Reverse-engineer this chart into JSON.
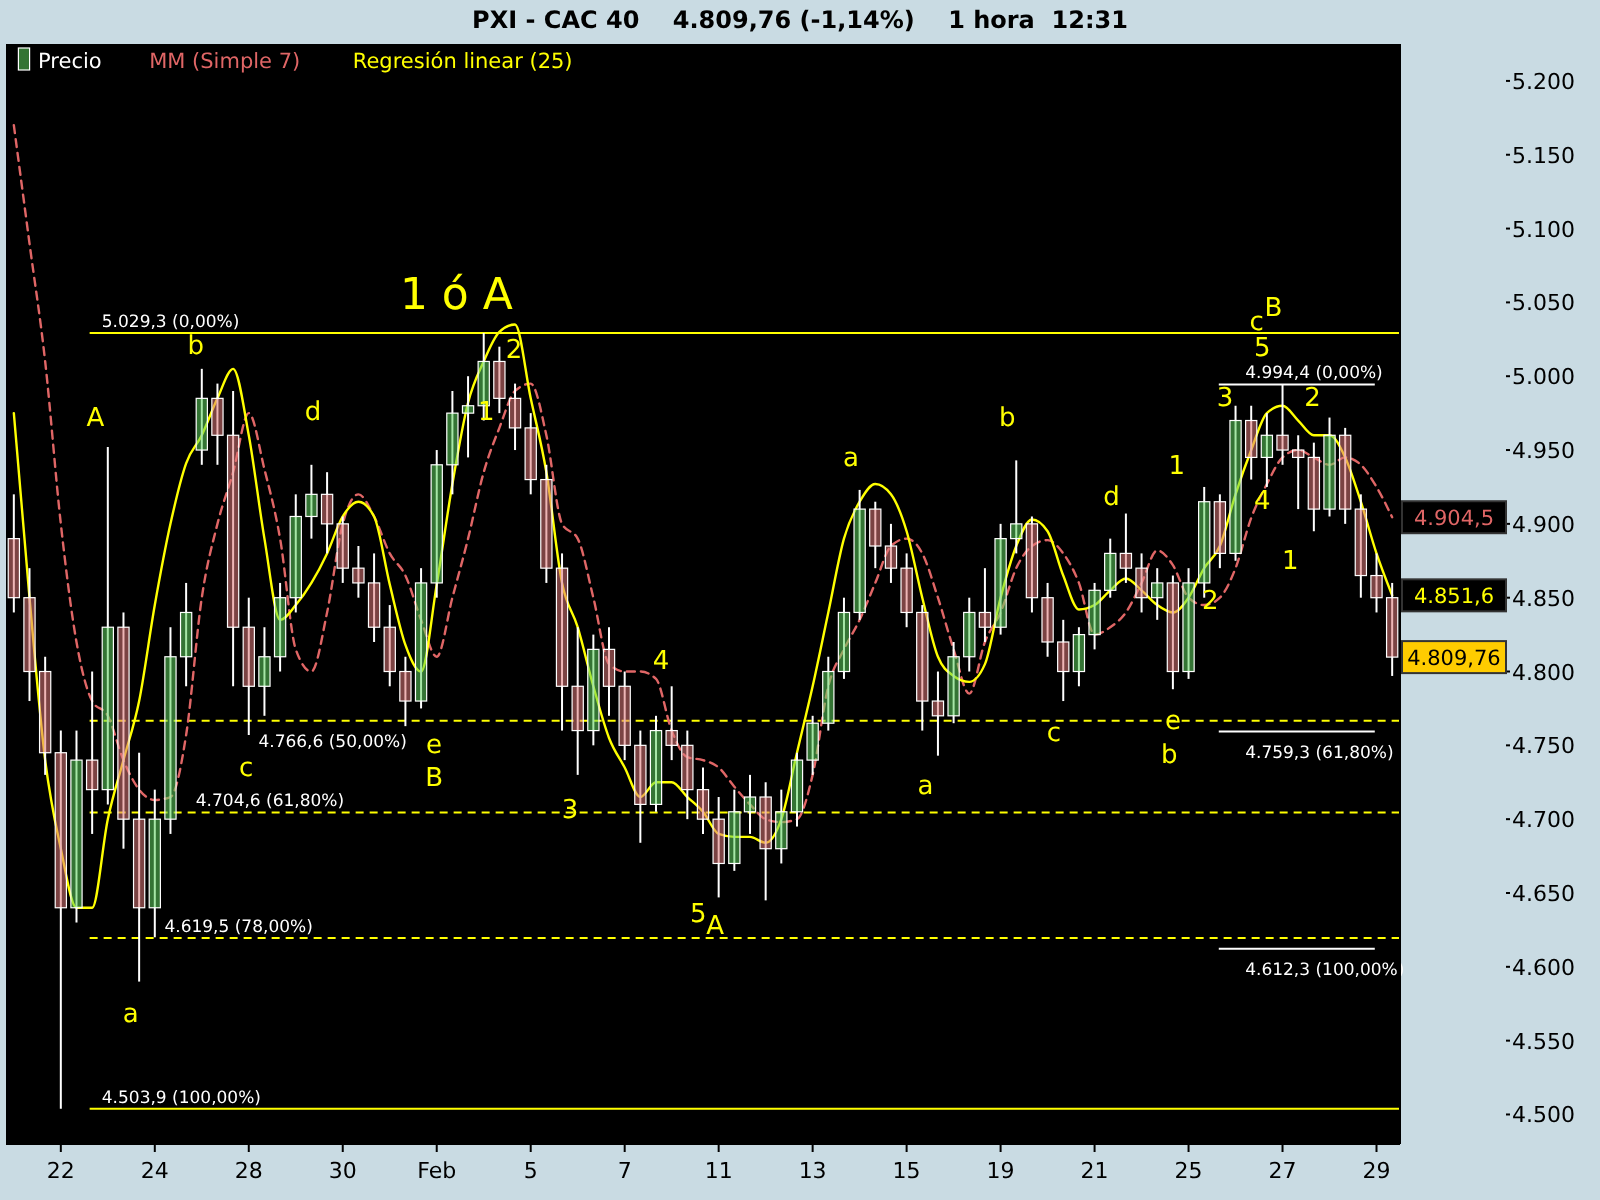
{
  "chart_data": {
    "type": "candlestick",
    "title": "PXI - CAC 40    4.809,76 (-1,14%)    1 hora  12:31",
    "categories": [
      null,
      null,
      null,
      "22",
      null,
      null,
      null,
      null,
      null,
      "24",
      null,
      null,
      null,
      null,
      null,
      "28",
      null,
      null,
      null,
      null,
      null,
      "30",
      null,
      null,
      null,
      null,
      null,
      "Feb",
      null,
      null,
      null,
      null,
      null,
      "5",
      null,
      null,
      null,
      null,
      null,
      "7",
      null,
      null,
      null,
      null,
      null,
      "11",
      null,
      null,
      null,
      null,
      null,
      "13",
      null,
      null,
      null,
      null,
      null,
      "15",
      null,
      null,
      null,
      null,
      null,
      "19",
      null,
      null,
      null,
      null,
      null,
      "21",
      null,
      null,
      null,
      null,
      null,
      "25",
      null,
      null,
      null,
      null,
      null,
      "27",
      null,
      null,
      null,
      null,
      null,
      "29",
      null
    ],
    "series": [
      {
        "name": "Precio",
        "color": "#ffffff",
        "ohlc": [
          [
            4890,
            4920,
            4840,
            4850
          ],
          [
            4850,
            4870,
            4780,
            4800
          ],
          [
            4800,
            4810,
            4730,
            4745
          ],
          [
            4745,
            4760,
            4503.9,
            4640
          ],
          [
            4640,
            4760,
            4630,
            4740
          ],
          [
            4740,
            4800,
            4690,
            4720
          ],
          [
            4720,
            4952,
            4710,
            4830
          ],
          [
            4830,
            4840,
            4680,
            4700
          ],
          [
            4700,
            4745,
            4590,
            4640
          ],
          [
            4640,
            4720,
            4620,
            4700
          ],
          [
            4700,
            4830,
            4690,
            4810
          ],
          [
            4810,
            4860,
            4790,
            4840
          ],
          [
            4950,
            5005,
            4940,
            4985
          ],
          [
            4985,
            4995,
            4940,
            4960
          ],
          [
            4960,
            4990,
            4790,
            4830
          ],
          [
            4830,
            4850,
            4757,
            4790
          ],
          [
            4790,
            4830,
            4770,
            4810
          ],
          [
            4810,
            4860,
            4800,
            4850
          ],
          [
            4850,
            4920,
            4840,
            4905
          ],
          [
            4905,
            4940,
            4890,
            4920
          ],
          [
            4920,
            4935,
            4880,
            4900
          ],
          [
            4900,
            4905,
            4860,
            4870
          ],
          [
            4870,
            4885,
            4850,
            4860
          ],
          [
            4860,
            4880,
            4820,
            4830
          ],
          [
            4830,
            4845,
            4790,
            4800
          ],
          [
            4800,
            4810,
            4763,
            4780
          ],
          [
            4780,
            4870,
            4775,
            4860
          ],
          [
            4860,
            4950,
            4850,
            4940
          ],
          [
            4940,
            4990,
            4920,
            4975
          ],
          [
            4975,
            5000,
            4945,
            4980
          ],
          [
            4980,
            5029.3,
            4970,
            5010
          ],
          [
            5010,
            5020,
            4975,
            4985
          ],
          [
            4985,
            4995,
            4950,
            4965
          ],
          [
            4965,
            4975,
            4920,
            4930
          ],
          [
            4930,
            4940,
            4860,
            4870
          ],
          [
            4870,
            4880,
            4760,
            4790
          ],
          [
            4790,
            4830,
            4730,
            4760
          ],
          [
            4760,
            4825,
            4750,
            4815
          ],
          [
            4815,
            4830,
            4770,
            4790
          ],
          [
            4790,
            4800,
            4740,
            4750
          ],
          [
            4750,
            4760,
            4684,
            4710
          ],
          [
            4710,
            4770,
            4705,
            4760
          ],
          [
            4760,
            4790,
            4740,
            4750
          ],
          [
            4750,
            4760,
            4700,
            4720
          ],
          [
            4720,
            4735,
            4690,
            4700
          ],
          [
            4700,
            4715,
            4647,
            4670
          ],
          [
            4670,
            4720,
            4665,
            4705
          ],
          [
            4705,
            4730,
            4690,
            4715
          ],
          [
            4715,
            4725,
            4645,
            4680
          ],
          [
            4680,
            4720,
            4670,
            4705
          ],
          [
            4705,
            4745,
            4695,
            4740
          ],
          [
            4740,
            4770,
            4730,
            4765
          ],
          [
            4765,
            4810,
            4760,
            4800
          ],
          [
            4800,
            4850,
            4795,
            4840
          ],
          [
            4840,
            4923,
            4835,
            4910
          ],
          [
            4910,
            4915,
            4870,
            4885
          ],
          [
            4885,
            4900,
            4860,
            4870
          ],
          [
            4870,
            4880,
            4830,
            4840
          ],
          [
            4840,
            4845,
            4760,
            4780
          ],
          [
            4780,
            4800,
            4743,
            4770
          ],
          [
            4770,
            4820,
            4765,
            4810
          ],
          [
            4810,
            4850,
            4800,
            4840
          ],
          [
            4840,
            4870,
            4820,
            4830
          ],
          [
            4830,
            4900,
            4825,
            4890
          ],
          [
            4890,
            4943,
            4880,
            4900
          ],
          [
            4900,
            4905,
            4840,
            4850
          ],
          [
            4850,
            4860,
            4810,
            4820
          ],
          [
            4820,
            4835,
            4780,
            4800
          ],
          [
            4800,
            4830,
            4790,
            4825
          ],
          [
            4825,
            4860,
            4815,
            4855
          ],
          [
            4855,
            4890,
            4850,
            4880
          ],
          [
            4880,
            4907,
            4860,
            4870
          ],
          [
            4870,
            4880,
            4840,
            4850
          ],
          [
            4850,
            4870,
            4835,
            4860
          ],
          [
            4860,
            4865,
            4788,
            4800
          ],
          [
            4800,
            4870,
            4795,
            4860
          ],
          [
            4860,
            4925,
            4850,
            4915
          ],
          [
            4915,
            4920,
            4870,
            4880
          ],
          [
            4880,
            4980,
            4875,
            4970
          ],
          [
            4970,
            4980,
            4930,
            4945
          ],
          [
            4945,
            4975,
            4925,
            4960
          ],
          [
            4960,
            4994.4,
            4940,
            4950
          ],
          [
            4950,
            4960,
            4910,
            4945
          ],
          [
            4945,
            4955,
            4895,
            4910
          ],
          [
            4910,
            4972,
            4905,
            4960
          ],
          [
            4960,
            4965,
            4900,
            4910
          ],
          [
            4910,
            4920,
            4850,
            4865
          ],
          [
            4865,
            4880,
            4840,
            4850
          ],
          [
            4850,
            4860,
            4797,
            4809.76
          ]
        ],
        "value_labels": [
          null,
          null,
          null,
          null,
          null,
          null,
          null,
          null,
          null,
          null,
          null,
          null,
          null,
          null,
          null,
          null,
          null,
          null,
          null,
          null,
          null,
          null,
          null,
          null,
          null,
          null,
          null,
          null,
          null,
          null,
          null,
          null,
          null,
          null,
          null,
          null,
          null,
          null,
          null,
          null,
          null,
          null,
          null,
          null,
          null,
          null,
          null,
          null,
          null,
          null,
          null,
          null,
          null,
          null,
          null,
          null,
          null,
          null,
          null,
          null,
          null,
          null,
          null,
          null,
          null,
          null,
          null,
          null,
          null,
          null,
          null,
          null,
          null,
          null,
          null,
          null,
          null,
          null,
          null,
          null,
          null,
          null,
          null,
          null,
          null,
          null,
          null,
          null,
          "4.809,76"
        ]
      },
      {
        "name": "MM (Simple 7)",
        "type": "line",
        "color": "#e06666",
        "line_style": "dashed",
        "values": [
          5170,
          5090,
          5010,
          4900,
          4820,
          4780,
          4770,
          4740,
          4720,
          4713,
          4715,
          4757,
          4850,
          4900,
          4935,
          4975,
          4937,
          4890,
          4815,
          4800,
          4840,
          4900,
          4920,
          4905,
          4880,
          4865,
          4835,
          4810,
          4850,
          4890,
          4935,
          4965,
          4990,
          4995,
          4960,
          4900,
          4890,
          4850,
          4805,
          4800,
          4800,
          4795,
          4760,
          4742,
          4740,
          4735,
          4722,
          4710,
          4700,
          4698,
          4700,
          4730,
          4790,
          4815,
          4835,
          4860,
          4885,
          4890,
          4880,
          4850,
          4815,
          4785,
          4820,
          4840,
          4870,
          4885,
          4889,
          4880,
          4860,
          4825,
          4830,
          4840,
          4860,
          4882,
          4872,
          4850,
          4845,
          4850,
          4870,
          4904,
          4927,
          4945,
          4950,
          4945,
          4940,
          4945,
          4940,
          4925,
          4904.5
        ],
        "value_labels": [
          null,
          null,
          null,
          null,
          null,
          null,
          null,
          null,
          null,
          null,
          null,
          null,
          null,
          null,
          null,
          null,
          null,
          null,
          null,
          null,
          null,
          null,
          null,
          null,
          null,
          null,
          null,
          null,
          null,
          null,
          null,
          null,
          null,
          null,
          null,
          null,
          null,
          null,
          null,
          null,
          null,
          null,
          null,
          null,
          null,
          null,
          null,
          null,
          null,
          null,
          null,
          null,
          null,
          null,
          null,
          null,
          null,
          null,
          null,
          null,
          null,
          null,
          null,
          null,
          null,
          null,
          null,
          null,
          null,
          null,
          null,
          null,
          null,
          null,
          null,
          null,
          null,
          null,
          null,
          null,
          null,
          null,
          null,
          null,
          null,
          null,
          null,
          null,
          "4.904,5"
        ]
      },
      {
        "name": "Regresión linear (25)",
        "type": "line",
        "color": "#ffff00",
        "line_style": "solid",
        "values": [
          4975,
          4850,
          4740,
          4680,
          4640,
          4640,
          4700,
          4740,
          4780,
          4845,
          4900,
          4941,
          4960,
          4985,
          5005,
          4960,
          4890,
          4835,
          4845,
          4860,
          4880,
          4905,
          4915,
          4905,
          4859,
          4818,
          4800,
          4859,
          4927,
          4982,
          5010,
          5030,
          5035,
          4985,
          4935,
          4860,
          4830,
          4790,
          4755,
          4735,
          4715,
          4725,
          4725,
          4715,
          4705,
          4690,
          4688,
          4688,
          4684,
          4700,
          4745,
          4790,
          4840,
          4890,
          4915,
          4927,
          4920,
          4895,
          4850,
          4810,
          4797,
          4793,
          4805,
          4850,
          4885,
          4903,
          4895,
          4865,
          4842,
          4845,
          4855,
          4863,
          4855,
          4845,
          4840,
          4850,
          4870,
          4885,
          4920,
          4950,
          4975,
          4980,
          4970,
          4960,
          4960,
          4945,
          4915,
          4880,
          4851.6
        ],
        "value_labels": [
          null,
          null,
          null,
          null,
          null,
          null,
          null,
          null,
          null,
          null,
          null,
          null,
          null,
          null,
          null,
          null,
          null,
          null,
          null,
          null,
          null,
          null,
          null,
          null,
          null,
          null,
          null,
          null,
          null,
          null,
          null,
          null,
          null,
          null,
          null,
          null,
          null,
          null,
          null,
          null,
          null,
          null,
          null,
          null,
          null,
          null,
          null,
          null,
          null,
          null,
          null,
          null,
          null,
          null,
          null,
          null,
          null,
          null,
          null,
          null,
          null,
          null,
          null,
          null,
          null,
          null,
          null,
          null,
          null,
          null,
          null,
          null,
          null,
          null,
          null,
          null,
          null,
          null,
          null,
          null,
          null,
          null,
          null,
          null,
          null,
          null,
          null,
          null,
          "4.851,6"
        ]
      }
    ],
    "ylim": [
      4480,
      5225
    ],
    "yticks": [
      {
        "value": 4500,
        "label": "4.500"
      },
      {
        "value": 4550,
        "label": "4.550"
      },
      {
        "value": 4600,
        "label": "4.600"
      },
      {
        "value": 4650,
        "label": "4.650"
      },
      {
        "value": 4700,
        "label": "4.700"
      },
      {
        "value": 4750,
        "label": "4.750"
      },
      {
        "value": 4800,
        "label": "4.800"
      },
      {
        "value": 4850,
        "label": "4.850"
      },
      {
        "value": 4900,
        "label": "4.900"
      },
      {
        "value": 4950,
        "label": "4.950"
      },
      {
        "value": 5000,
        "label": "5.000"
      },
      {
        "value": 5050,
        "label": "5.050"
      },
      {
        "value": 5100,
        "label": "5.100"
      },
      {
        "value": 5150,
        "label": "5.150"
      },
      {
        "value": 5200,
        "label": "5.200"
      }
    ],
    "ref_lines": [
      {
        "axis": "y",
        "value": 5029.3,
        "label": "5.029,3 (0,00%)",
        "color": "#ffff00",
        "line_style": "solid"
      },
      {
        "axis": "y",
        "value": 4766.6,
        "label": "4.766,6 (50,00%)",
        "color": "#ffff00",
        "line_style": "dashed"
      },
      {
        "axis": "y",
        "value": 4704.6,
        "label": "4.704,6 (61,80%)",
        "color": "#ffff00",
        "line_style": "dashed"
      },
      {
        "axis": "y",
        "value": 4619.5,
        "label": "4.619,5 (78,00%)",
        "color": "#ffff00",
        "line_style": "dashed"
      },
      {
        "axis": "y",
        "value": 4503.9,
        "label": "4.503,9 (100,00%)",
        "color": "#ffff00",
        "line_style": "solid"
      },
      {
        "axis": "y",
        "value": 4994.4,
        "label": "4.994,4 (0,00%)",
        "color": "#ffffff",
        "line_style": "solid"
      },
      {
        "axis": "y",
        "value": 4759.3,
        "label": "4.759,3 (61,80%)",
        "color": "#ffffff",
        "line_style": "solid"
      },
      {
        "axis": "y",
        "value": 4612.3,
        "label": "4.612,3 (100,00%)",
        "color": "#ffffff",
        "line_style": "solid"
      }
    ],
    "annotations": [
      "A",
      "a",
      "b",
      "c",
      "d",
      "e",
      "B",
      "1 ó A",
      "1",
      "2",
      "3",
      "4",
      "5",
      "A",
      "a",
      "a",
      "b",
      "c",
      "d",
      "e",
      "b",
      "1",
      "2",
      "3",
      "4",
      "5",
      "c",
      "B",
      "1",
      "2"
    ],
    "legend": "top left",
    "grid": false,
    "marker": "none"
  }
}
